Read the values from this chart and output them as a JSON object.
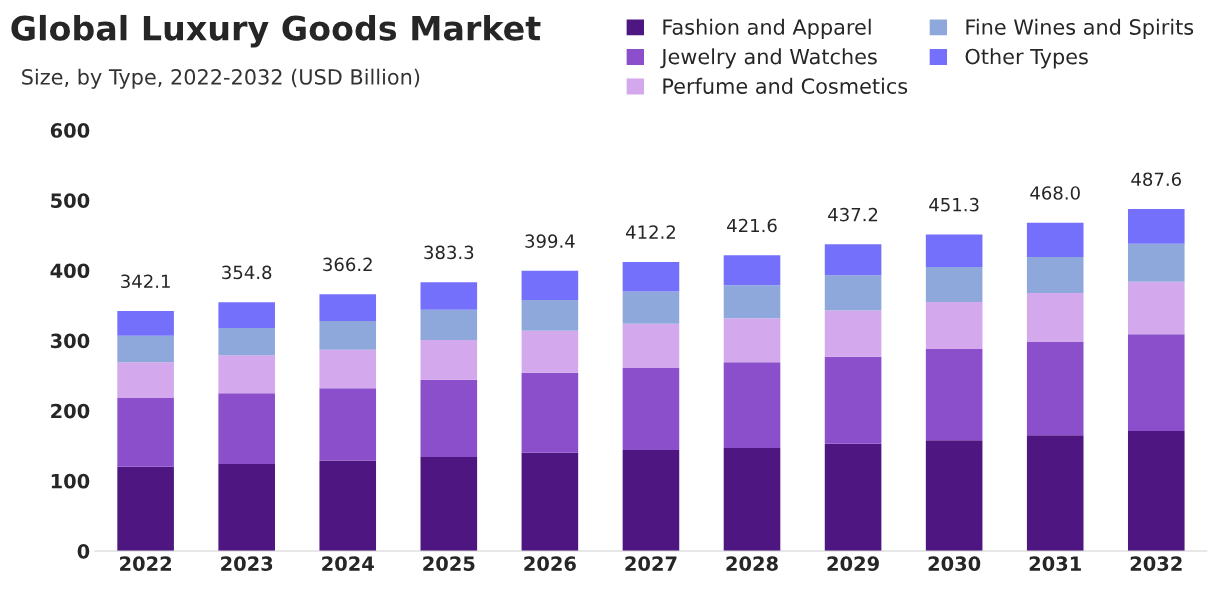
{
  "chart_data": {
    "type": "bar",
    "title": "Global Luxury Goods Market",
    "subtitle": "Size, by Type, 2022-2032 (USD Billion)",
    "categories": [
      "2022",
      "2023",
      "2024",
      "2025",
      "2026",
      "2027",
      "2028",
      "2029",
      "2030",
      "2031",
      "2032"
    ],
    "stacked": true,
    "series": [
      {
        "name": "Fashion and Apparel",
        "color": "#4e1680",
        "values": [
          120,
          124,
          129,
          134,
          140,
          144,
          147,
          153,
          158,
          165,
          171
        ]
      },
      {
        "name": "Jewelry and Watches",
        "color": "#8b4fcc",
        "values": [
          98,
          101,
          103,
          110,
          114,
          117,
          122,
          124,
          130,
          133,
          138
        ]
      },
      {
        "name": "Perfume and Cosmetics",
        "color": "#d3a8ec",
        "values": [
          51,
          54,
          55,
          57,
          60,
          63,
          63,
          66,
          67,
          70,
          75
        ]
      },
      {
        "name": "Fine Wines and Spirits",
        "color": "#8fa8dc",
        "values": [
          38,
          39,
          41,
          43,
          44,
          46,
          47,
          50,
          50,
          51,
          54
        ]
      },
      {
        "name": "Other Types",
        "color": "#7470fc",
        "values": [
          35.1,
          36.8,
          38.2,
          39.3,
          41.4,
          42.2,
          42.6,
          44.2,
          46.3,
          49.0,
          49.6
        ]
      }
    ],
    "totals": [
      "342.1",
      "354.8",
      "366.2",
      "383.3",
      "399.4",
      "412.2",
      "421.6",
      "437.2",
      "451.3",
      "468.0",
      "487.6"
    ],
    "ylim": [
      0,
      600
    ],
    "yticks": [
      0,
      100,
      200,
      300,
      400,
      500,
      600
    ],
    "grid": false,
    "legend": "top right"
  }
}
